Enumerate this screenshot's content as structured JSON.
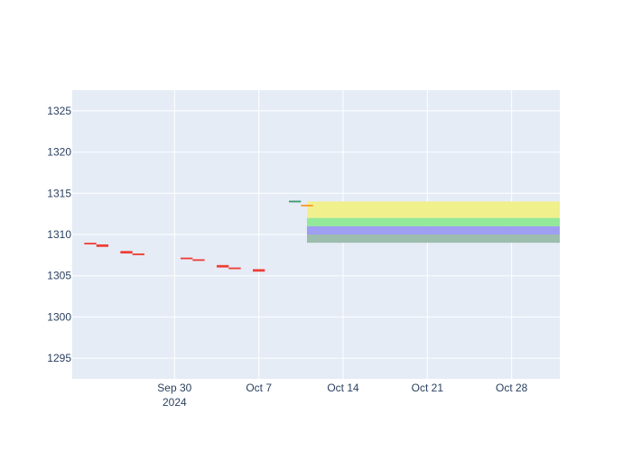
{
  "chart_data": {
    "type": "candlestick",
    "title": "",
    "xlabel": "",
    "ylabel": "",
    "ylim": [
      1292.5,
      1327.5
    ],
    "xlim": [
      "2024-09-21T12:00",
      "2024-11-01T00:00"
    ],
    "grid": true,
    "colors": {
      "plot_bg": "#e5ecf6",
      "grid": "#ffffff",
      "increasing": "#3d9970",
      "decreasing": "#ef3e36",
      "neutral": "#ff8c1a"
    },
    "y_ticks": [
      "1295",
      "1300",
      "1305",
      "1310",
      "1315",
      "1320",
      "1325"
    ],
    "x_ticks": [
      {
        "date": "2024-09-30",
        "label": "Sep 30",
        "sublabel": "2024"
      },
      {
        "date": "2024-10-07",
        "label": "Oct 7",
        "sublabel": ""
      },
      {
        "date": "2024-10-14",
        "label": "Oct 14",
        "sublabel": ""
      },
      {
        "date": "2024-10-21",
        "label": "Oct 21",
        "sublabel": ""
      },
      {
        "date": "2024-10-28",
        "label": "Oct 28",
        "sublabel": ""
      }
    ],
    "candles": [
      {
        "date": "2024-09-21",
        "open": 1309.1,
        "close": 1309.3,
        "direction": "up"
      },
      {
        "date": "2024-09-23",
        "open": 1309.0,
        "close": 1308.8,
        "direction": "down"
      },
      {
        "date": "2024-09-24",
        "open": 1308.8,
        "close": 1308.5,
        "direction": "down"
      },
      {
        "date": "2024-09-26",
        "open": 1308.0,
        "close": 1307.7,
        "direction": "down"
      },
      {
        "date": "2024-09-27",
        "open": 1307.7,
        "close": 1307.5,
        "direction": "down"
      },
      {
        "date": "2024-10-01",
        "open": 1307.2,
        "close": 1307.0,
        "direction": "down"
      },
      {
        "date": "2024-10-02",
        "open": 1307.0,
        "close": 1306.8,
        "direction": "down"
      },
      {
        "date": "2024-10-04",
        "open": 1306.3,
        "close": 1306.0,
        "direction": "down"
      },
      {
        "date": "2024-10-05",
        "open": 1306.0,
        "close": 1305.8,
        "direction": "down"
      },
      {
        "date": "2024-10-07",
        "open": 1305.8,
        "close": 1305.5,
        "direction": "down"
      },
      {
        "date": "2024-10-10",
        "open": 1313.9,
        "close": 1314.1,
        "direction": "up"
      },
      {
        "date": "2024-10-11",
        "open": 1313.6,
        "close": 1313.6,
        "direction": "flat"
      }
    ],
    "bands": [
      {
        "from": "2024-10-11",
        "to": "2024-11-01",
        "y0": 1312.0,
        "y1": 1314.0,
        "color": "#f0f08c"
      },
      {
        "from": "2024-10-11",
        "to": "2024-11-01",
        "y0": 1311.0,
        "y1": 1312.0,
        "color": "#92e99a"
      },
      {
        "from": "2024-10-11",
        "to": "2024-11-01",
        "y0": 1310.0,
        "y1": 1311.0,
        "color": "#9e9ef2"
      },
      {
        "from": "2024-10-11",
        "to": "2024-11-01",
        "y0": 1309.0,
        "y1": 1310.0,
        "color": "#9dbdae"
      }
    ]
  }
}
